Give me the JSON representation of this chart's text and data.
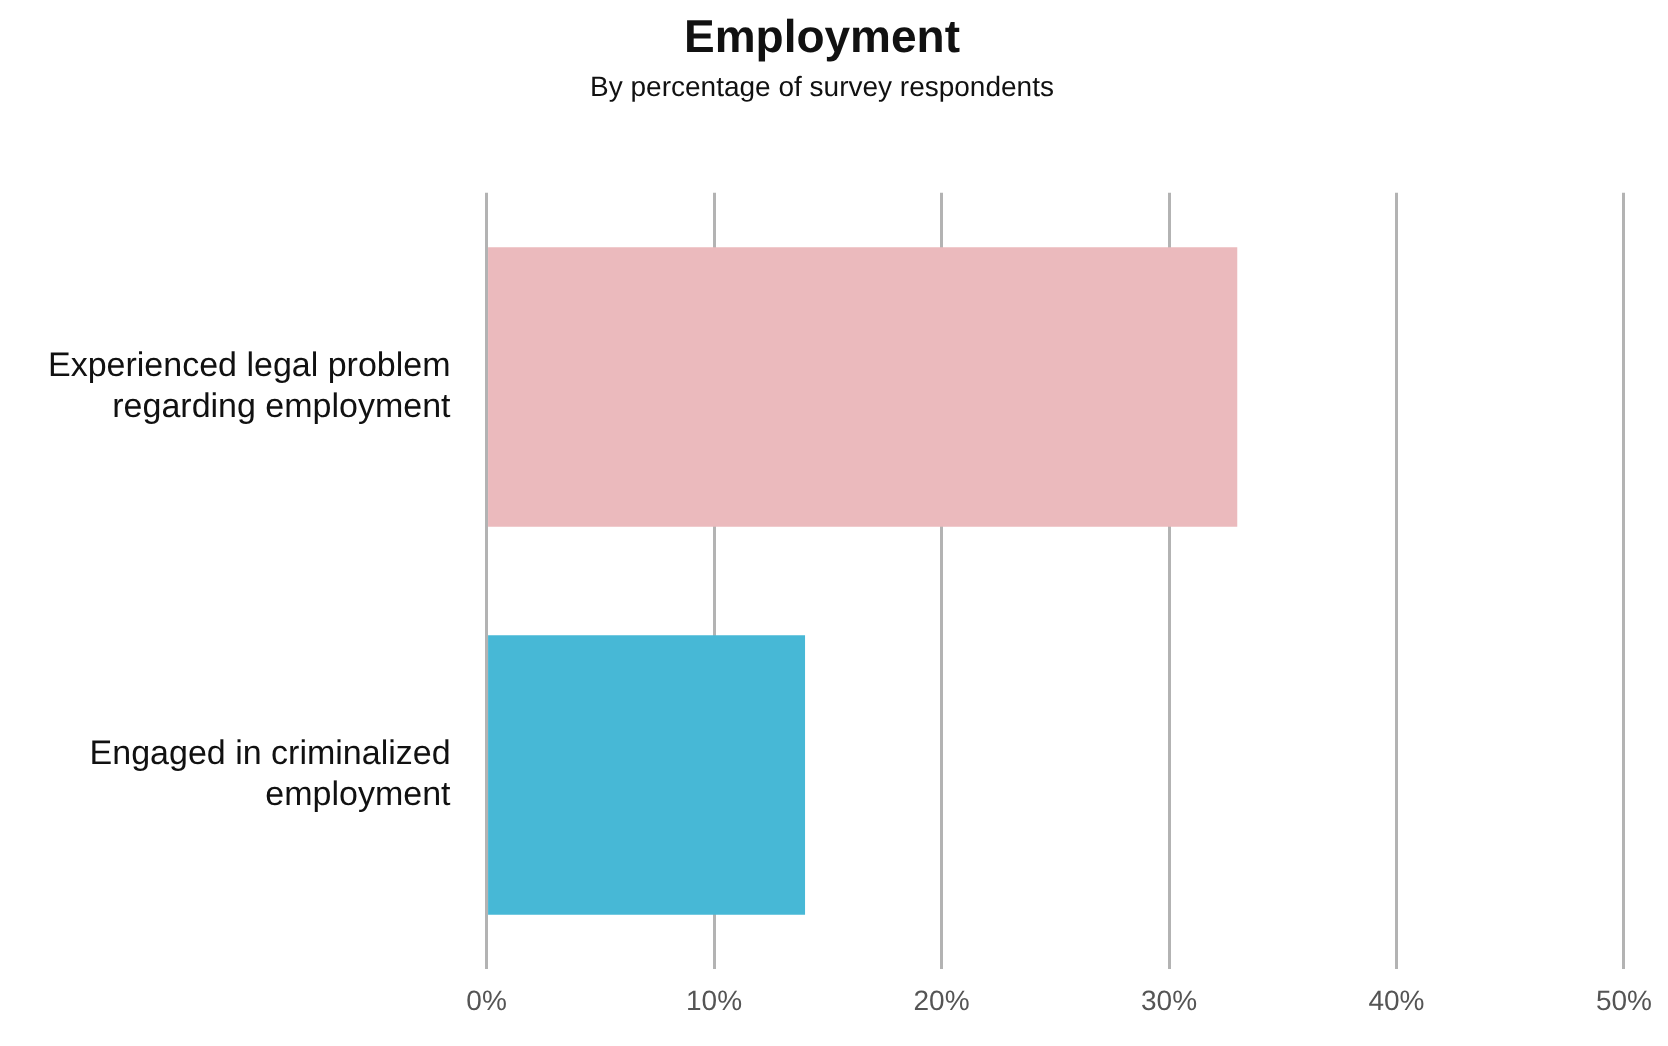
{
  "chart_data": {
    "type": "bar",
    "orientation": "horizontal",
    "title": "Employment",
    "subtitle": "By percentage of survey respondents",
    "categories": [
      "Experienced legal problem regarding employment",
      "Engaged in criminalized employment"
    ],
    "values": [
      33,
      14
    ],
    "colors": [
      "#ebbabd",
      "#47b8d6"
    ],
    "xlim": [
      0,
      50
    ],
    "xticks": [
      {
        "value": 0,
        "label": "0%"
      },
      {
        "value": 10,
        "label": "10%"
      },
      {
        "value": 20,
        "label": "20%"
      },
      {
        "value": 30,
        "label": "30%"
      },
      {
        "value": 40,
        "label": "40%"
      },
      {
        "value": 50,
        "label": "50%"
      }
    ],
    "grid": "x",
    "legend": false
  }
}
